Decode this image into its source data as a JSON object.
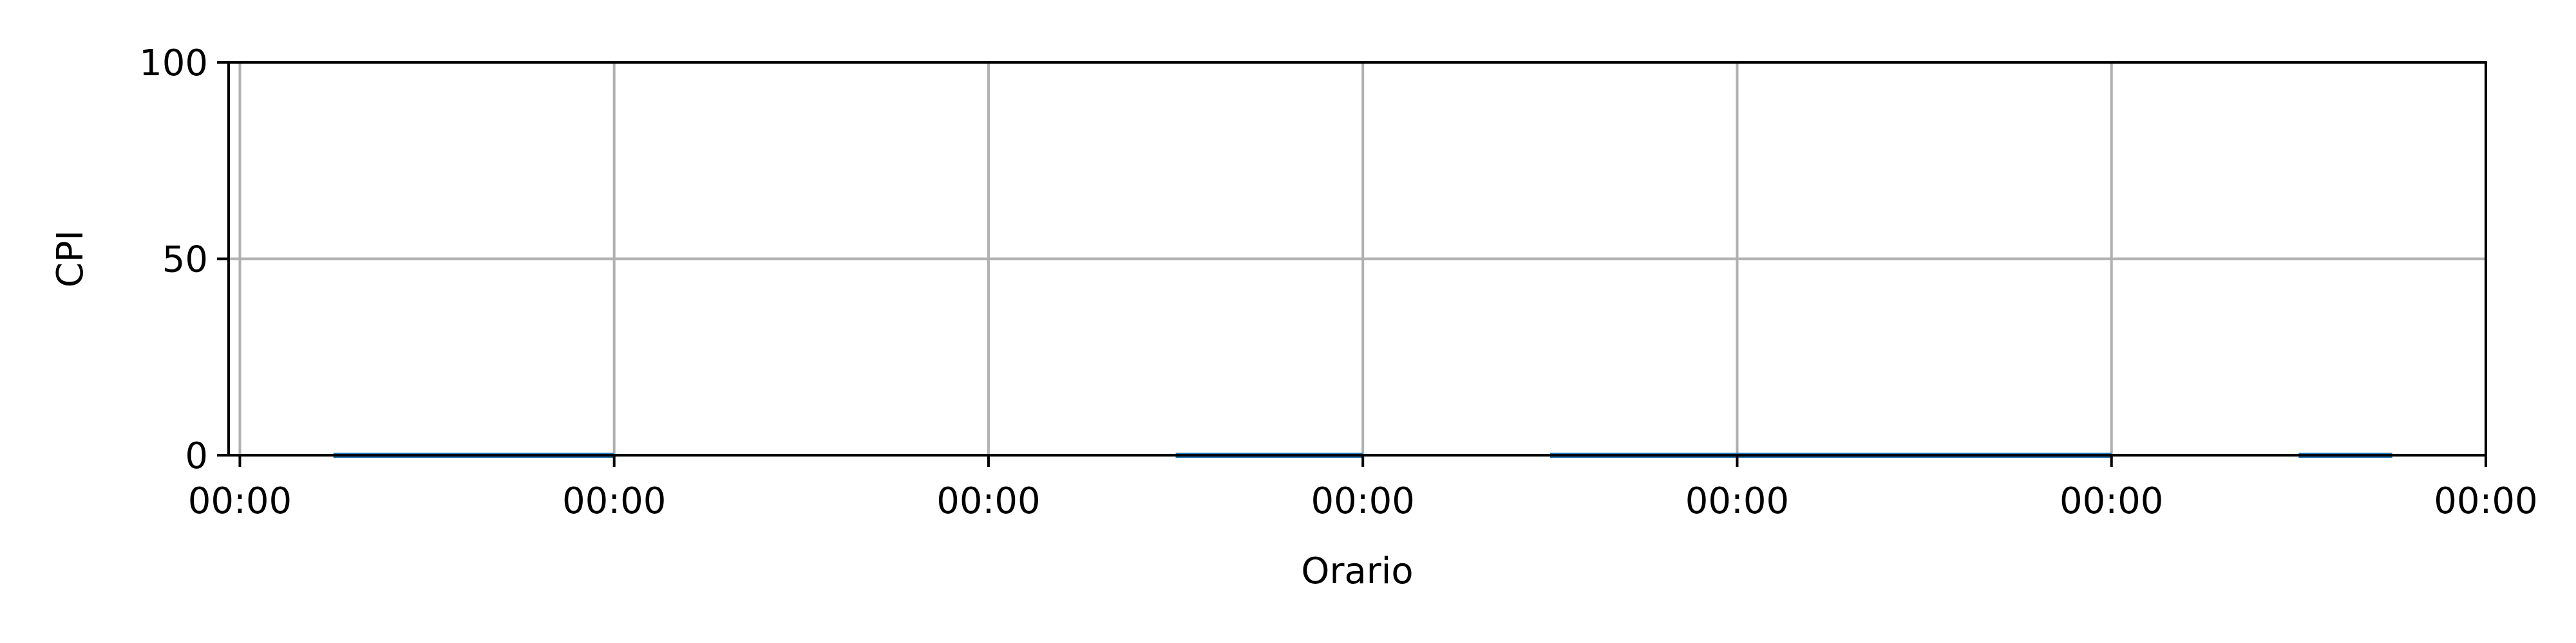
{
  "chart_data": {
    "type": "line",
    "title": "",
    "xlabel": "Orario",
    "ylabel": "CPI",
    "ylim": [
      0,
      100
    ],
    "xlim": [
      -0.03,
      6.0
    ],
    "grid": true,
    "x_ticks": [
      0,
      1,
      2,
      3,
      4,
      5,
      6
    ],
    "x_tick_labels": [
      "00:00",
      "00:00",
      "00:00",
      "00:00",
      "00:00",
      "00:00",
      "00:00"
    ],
    "y_ticks": [
      0,
      50,
      100
    ],
    "y_tick_labels": [
      "0",
      "50",
      "100"
    ],
    "colors": {
      "series": "#1f77b4",
      "grid": "#b0b0b0",
      "axes": "#000000"
    },
    "series": [
      {
        "segments": [
          {
            "x": [
              0.25,
              1.0
            ],
            "y": [
              0,
              0
            ]
          },
          {
            "x": [
              2.5,
              3.0
            ],
            "y": [
              0,
              0
            ]
          },
          {
            "x": [
              3.5,
              5.0
            ],
            "y": [
              0,
              0
            ]
          },
          {
            "x": [
              5.5,
              5.75
            ],
            "y": [
              0,
              0
            ]
          }
        ]
      }
    ]
  }
}
